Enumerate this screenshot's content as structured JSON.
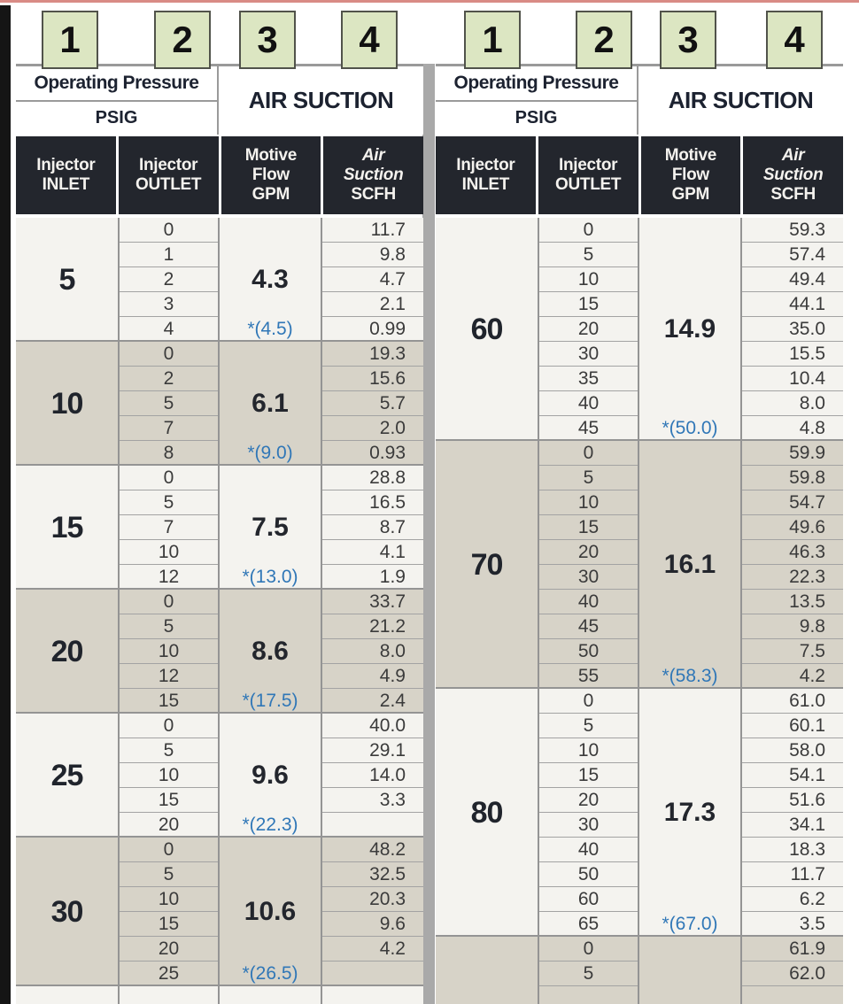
{
  "markers": {
    "labels": [
      "1",
      "2",
      "3",
      "4"
    ]
  },
  "header": {
    "group_title": "Operating Pressure",
    "group_sub": "PSIG",
    "air_suction_title": "AIR SUCTION",
    "columns": [
      {
        "l1": "Injector",
        "l2": "INLET"
      },
      {
        "l1": "Injector",
        "l2": "OUTLET"
      },
      {
        "l1": "Motive",
        "l2": "Flow",
        "l3": "GPM"
      },
      {
        "l1": "Air",
        "l2": "Suction",
        "l3": "SCFH"
      }
    ]
  },
  "colors": {
    "marker_bg": "#dce6c2",
    "marker_border": "#51534b",
    "dark_header_bg": "#23262d",
    "light_section_bg": "#f4f3ef",
    "tan_section_bg": "#d7d3c8",
    "starred_value_blue": "#3077b7",
    "divider_gray": "#a9a9a9",
    "top_line_red": "#d98b85",
    "left_bar_black": "#151515"
  },
  "tables": [
    {
      "sections": [
        {
          "inlet": "5",
          "gpm": "4.3",
          "gpm_star": "*(4.5)",
          "shade": "light",
          "rows": [
            [
              "0",
              "11.7"
            ],
            [
              "1",
              "9.8"
            ],
            [
              "2",
              "4.7"
            ],
            [
              "3",
              "2.1"
            ],
            [
              "4",
              "0.99"
            ]
          ]
        },
        {
          "inlet": "10",
          "gpm": "6.1",
          "gpm_star": "*(9.0)",
          "shade": "tan",
          "rows": [
            [
              "0",
              "19.3"
            ],
            [
              "2",
              "15.6"
            ],
            [
              "5",
              "5.7"
            ],
            [
              "7",
              "2.0"
            ],
            [
              "8",
              "0.93"
            ]
          ]
        },
        {
          "inlet": "15",
          "gpm": "7.5",
          "gpm_star": "*(13.0)",
          "shade": "light",
          "rows": [
            [
              "0",
              "28.8"
            ],
            [
              "5",
              "16.5"
            ],
            [
              "7",
              "8.7"
            ],
            [
              "10",
              "4.1"
            ],
            [
              "12",
              "1.9"
            ]
          ]
        },
        {
          "inlet": "20",
          "gpm": "8.6",
          "gpm_star": "*(17.5)",
          "shade": "tan",
          "rows": [
            [
              "0",
              "33.7"
            ],
            [
              "5",
              "21.2"
            ],
            [
              "10",
              "8.0"
            ],
            [
              "12",
              "4.9"
            ],
            [
              "15",
              "2.4"
            ]
          ]
        },
        {
          "inlet": "25",
          "gpm": "9.6",
          "gpm_star": "*(22.3)",
          "shade": "light",
          "rows": [
            [
              "0",
              "40.0"
            ],
            [
              "5",
              "29.1"
            ],
            [
              "10",
              "14.0"
            ],
            [
              "15",
              "3.3"
            ],
            [
              "20",
              ""
            ]
          ]
        },
        {
          "inlet": "30",
          "gpm": "10.6",
          "gpm_star": "*(26.5)",
          "shade": "tan",
          "rows": [
            [
              "0",
              "48.2"
            ],
            [
              "5",
              "32.5"
            ],
            [
              "10",
              "20.3"
            ],
            [
              "15",
              "9.6"
            ],
            [
              "20",
              "4.2"
            ],
            [
              "25",
              ""
            ]
          ]
        },
        {
          "inlet": "",
          "gpm": "",
          "gpm_star": "",
          "shade": "light",
          "partial": true,
          "rows": [
            [
              "",
              ""
            ]
          ]
        }
      ]
    },
    {
      "sections": [
        {
          "inlet": "60",
          "gpm": "14.9",
          "gpm_star": "*(50.0)",
          "shade": "light",
          "rows": [
            [
              "0",
              "59.3"
            ],
            [
              "5",
              "57.4"
            ],
            [
              "10",
              "49.4"
            ],
            [
              "15",
              "44.1"
            ],
            [
              "20",
              "35.0"
            ],
            [
              "30",
              "15.5"
            ],
            [
              "35",
              "10.4"
            ],
            [
              "40",
              "8.0"
            ],
            [
              "45",
              "4.8"
            ]
          ]
        },
        {
          "inlet": "70",
          "gpm": "16.1",
          "gpm_star": "*(58.3)",
          "shade": "tan",
          "rows": [
            [
              "0",
              "59.9"
            ],
            [
              "5",
              "59.8"
            ],
            [
              "10",
              "54.7"
            ],
            [
              "15",
              "49.6"
            ],
            [
              "20",
              "46.3"
            ],
            [
              "30",
              "22.3"
            ],
            [
              "40",
              "13.5"
            ],
            [
              "45",
              "9.8"
            ],
            [
              "50",
              "7.5"
            ],
            [
              "55",
              "4.2"
            ]
          ]
        },
        {
          "inlet": "80",
          "gpm": "17.3",
          "gpm_star": "*(67.0)",
          "shade": "light",
          "rows": [
            [
              "0",
              "61.0"
            ],
            [
              "5",
              "60.1"
            ],
            [
              "10",
              "58.0"
            ],
            [
              "15",
              "54.1"
            ],
            [
              "20",
              "51.6"
            ],
            [
              "30",
              "34.1"
            ],
            [
              "40",
              "18.3"
            ],
            [
              "50",
              "11.7"
            ],
            [
              "60",
              "6.2"
            ],
            [
              "65",
              "3.5"
            ]
          ]
        },
        {
          "inlet": "",
          "gpm": "",
          "gpm_star": "",
          "shade": "tan",
          "partial": true,
          "rows": [
            [
              "0",
              "61.9"
            ],
            [
              "5",
              "62.0"
            ],
            [
              "",
              ""
            ]
          ]
        }
      ]
    }
  ]
}
